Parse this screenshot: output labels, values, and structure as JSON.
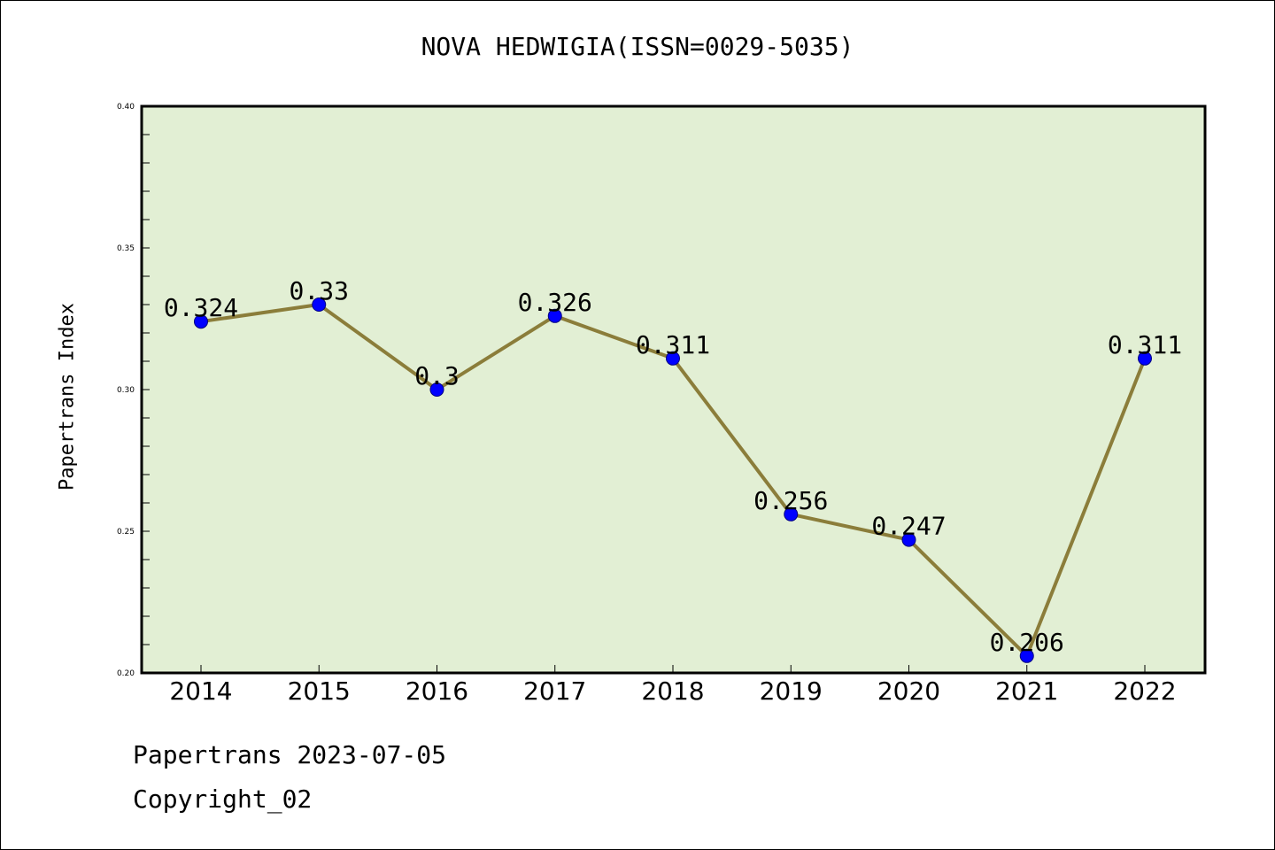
{
  "chart_data": {
    "type": "line",
    "title": "NOVA HEDWIGIA(ISSN=0029-5035)",
    "xlabel": "",
    "ylabel": "Papertrans Index",
    "categories": [
      "2014",
      "2015",
      "2016",
      "2017",
      "2018",
      "2019",
      "2020",
      "2021",
      "2022"
    ],
    "values": [
      0.324,
      0.33,
      0.3,
      0.326,
      0.311,
      0.256,
      0.247,
      0.206,
      0.311
    ],
    "data_labels": [
      "0.324",
      "0.33",
      "0.3",
      "0.326",
      "0.311",
      "0.256",
      "0.247",
      "0.206",
      "0.311"
    ],
    "ylim": [
      0.2,
      0.4
    ],
    "yticks": [
      "0.20",
      "0.25",
      "0.30",
      "0.35",
      "0.40"
    ],
    "grid": false,
    "legend": "none"
  },
  "colors": {
    "plot_background": "#e2efd4",
    "line": "#8b7d3a",
    "marker": "#0000ff",
    "axes": "#000000"
  },
  "footer": {
    "date_line": "Papertrans 2023-07-05",
    "copyright_line": "Copyright_02"
  }
}
